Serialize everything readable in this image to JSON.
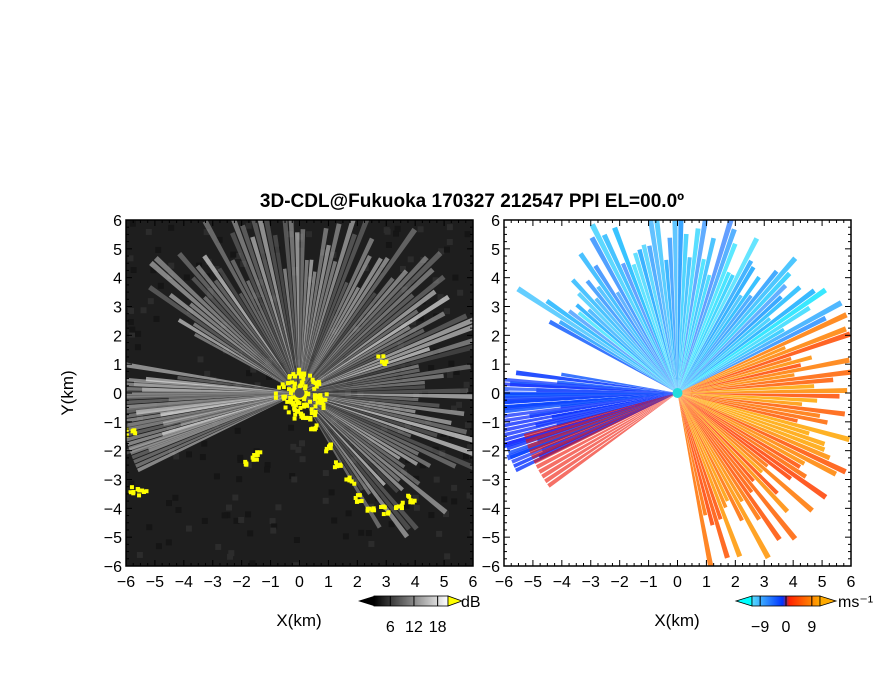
{
  "title": "3D-CDL@Fukuoka 170327 212547 PPI EL=00.0º",
  "chart_data": [
    {
      "type": "heatmap",
      "panel": "left",
      "quantity": "reflectivity",
      "xlabel": "X(km)",
      "ylabel": "Y(km)",
      "xlim": [
        -6,
        6
      ],
      "ylim": [
        -6,
        6
      ],
      "xticks": [
        "−6",
        "−5",
        "−4",
        "−3",
        "−2",
        "−1",
        "0",
        "1",
        "2",
        "3",
        "4",
        "5",
        "6"
      ],
      "yticks": [
        "6",
        "5",
        "4",
        "3",
        "2",
        "1",
        "0",
        "−1",
        "−2",
        "−3",
        "−4",
        "−5",
        "−6"
      ],
      "colorbar": {
        "ticks": [
          "6",
          "12",
          "18"
        ],
        "unit": "dB",
        "colors": [
          "#000000",
          "#ffffff",
          "#ffff00"
        ]
      }
    },
    {
      "type": "heatmap",
      "panel": "right",
      "quantity": "doppler velocity",
      "xlabel": "X(km)",
      "xlim": [
        -6,
        6
      ],
      "ylim": [
        -6,
        6
      ],
      "xticks": [
        "−6",
        "−5",
        "−4",
        "−3",
        "−2",
        "−1",
        "0",
        "1",
        "2",
        "3",
        "4",
        "5",
        "6"
      ],
      "yticks": [
        "6",
        "5",
        "4",
        "3",
        "2",
        "1",
        "0",
        "−1",
        "−2",
        "−3",
        "−4",
        "−5",
        "−6"
      ],
      "colorbar": {
        "ticks": [
          "−9",
          "0",
          "9"
        ],
        "unit": "ms⁻¹",
        "colors": [
          "#00ffff",
          "#0033ff",
          "#ff2200",
          "#ffaa00"
        ]
      }
    }
  ]
}
